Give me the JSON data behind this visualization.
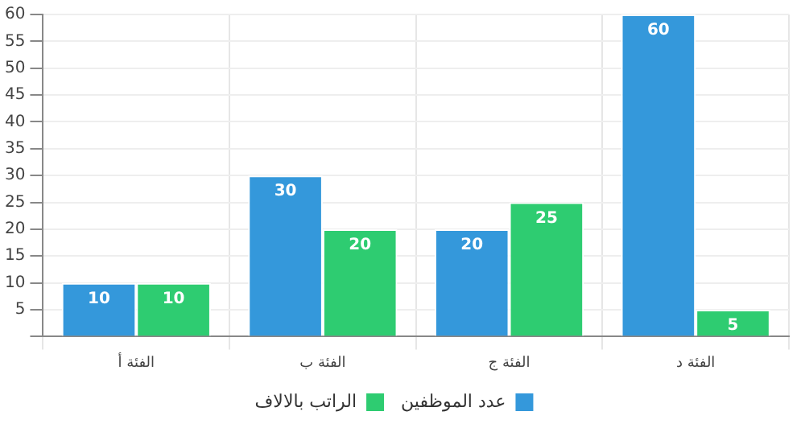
{
  "chart_data": {
    "type": "bar",
    "categories": [
      "الفئة أ",
      "الفئة ب",
      "الفئة ج",
      "الفئة د"
    ],
    "series": [
      {
        "name": "عدد الموظفين",
        "color": "#3498db",
        "values": [
          10,
          30,
          20,
          60
        ]
      },
      {
        "name": "الراتب بالالاف",
        "color": "#2ecc71",
        "values": [
          10,
          20,
          25,
          5
        ]
      }
    ],
    "ylim": [
      0,
      60
    ],
    "yticks": [
      {
        "value": 0,
        "label": null
      },
      5,
      10,
      15,
      20,
      25,
      30,
      35,
      40,
      45,
      50,
      55,
      60
    ],
    "grid": true,
    "legend": "bottom",
    "data_labels": true
  }
}
